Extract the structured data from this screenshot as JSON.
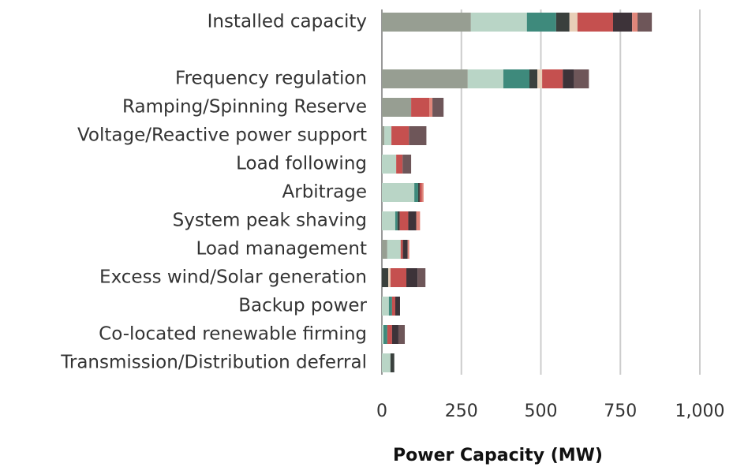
{
  "chart_data": {
    "type": "bar",
    "orientation": "horizontal",
    "stacked": true,
    "xlabel": "Power Capacity (MW)",
    "categories": [
      "Installed capacity",
      null,
      "Frequency regulation",
      "Ramping/Spinning Reserve",
      "Voltage/Reactive power support",
      "Load following",
      "Arbitrage",
      "System peak shaving",
      "Load management",
      "Excess wind/Solar generation",
      "Backup power",
      "Co-located renewable firming",
      "Transmission/Distribution deferral"
    ],
    "series": [
      {
        "color": "#979e92",
        "values": [
          280,
          null,
          270,
          92,
          8,
          0,
          0,
          0,
          17,
          0,
          0,
          0,
          0
        ]
      },
      {
        "color": "#b9d5c6",
        "values": [
          176,
          null,
          112,
          0,
          22,
          45,
          102,
          42,
          42,
          0,
          22,
          5,
          27
        ]
      },
      {
        "color": "#3e8a7c",
        "values": [
          92,
          null,
          82,
          0,
          0,
          0,
          12,
          7,
          0,
          0,
          10,
          12,
          0
        ]
      },
      {
        "color": "#3a403d",
        "values": [
          42,
          null,
          25,
          0,
          0,
          0,
          5,
          7,
          0,
          20,
          0,
          0,
          12
        ]
      },
      {
        "color": "#e8cfb8",
        "values": [
          25,
          null,
          15,
          0,
          0,
          0,
          0,
          0,
          0,
          7,
          0,
          0,
          0
        ]
      },
      {
        "color": "#c5504f",
        "values": [
          112,
          null,
          65,
          57,
          55,
          20,
          7,
          27,
          7,
          50,
          10,
          15,
          0
        ]
      },
      {
        "color": "#3d3339",
        "values": [
          60,
          null,
          35,
          0,
          0,
          0,
          0,
          25,
          15,
          35,
          15,
          20,
          0
        ]
      },
      {
        "color": "#e0867a",
        "values": [
          17,
          null,
          0,
          10,
          0,
          0,
          5,
          12,
          5,
          0,
          0,
          0,
          0
        ]
      },
      {
        "color": "#6e5659",
        "values": [
          45,
          null,
          47,
          35,
          55,
          27,
          0,
          0,
          0,
          25,
          0,
          20,
          0
        ]
      }
    ],
    "xlim": [
      0,
      1000
    ],
    "xticks": [
      0,
      250,
      500,
      750,
      {
        "value": 1000,
        "label": "1,000"
      }
    ],
    "grid": true
  }
}
